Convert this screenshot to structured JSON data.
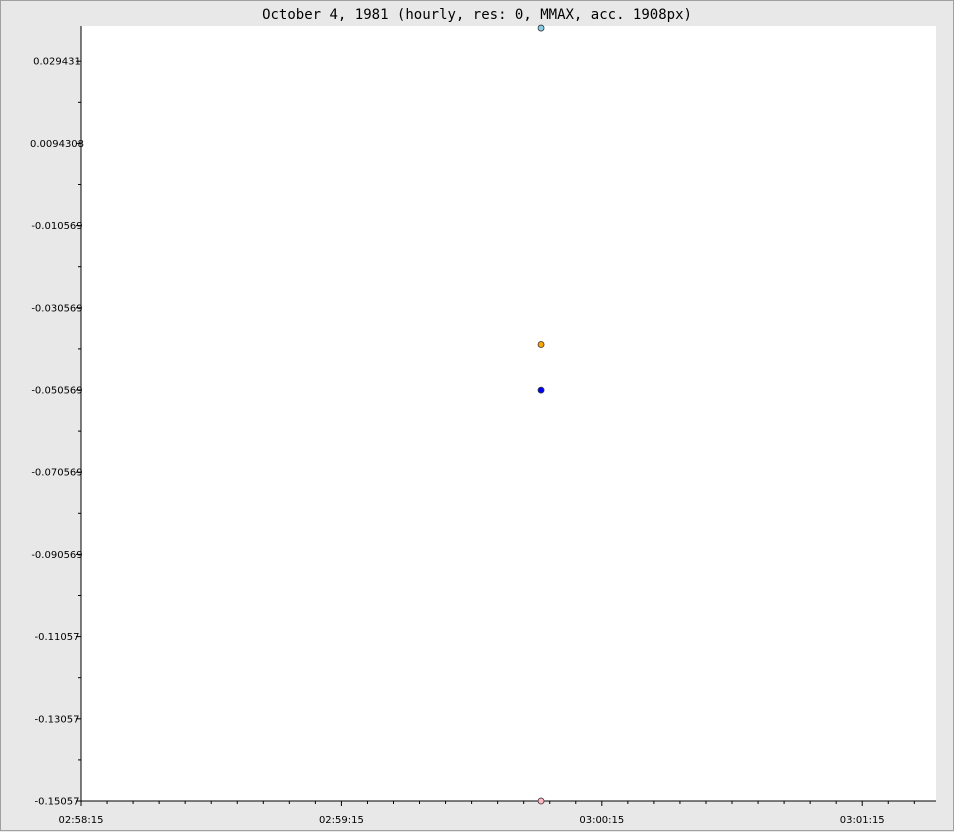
{
  "chart_data": {
    "type": "scatter",
    "title": "October 4, 1981 (hourly, res: 0, MMAX, acc. 1908px)",
    "xlabel": "",
    "ylabel": "",
    "x_tick_labels": [
      "02:58:15",
      "02:59:15",
      "03:00:15",
      "03:01:15"
    ],
    "x_tick_seconds": [
      0,
      60,
      120,
      180
    ],
    "xlim_seconds": [
      0,
      197
    ],
    "y_tick_labels": [
      "0.029431",
      "0.0094308",
      "-0.010569",
      "-0.030569",
      "-0.050569",
      "-0.070569",
      "-0.090569",
      "-0.11057",
      "-0.13057",
      "-0.15057"
    ],
    "y_ticks": [
      0.029431,
      0.0094308,
      -0.010569,
      -0.030569,
      -0.050569,
      -0.070569,
      -0.090569,
      -0.11057,
      -0.13057,
      -0.15057
    ],
    "ylim": [
      -0.15057,
      0.038
    ],
    "grid": false,
    "points": [
      {
        "x_seconds": 106,
        "y": 0.0375,
        "color": "#87ceeb"
      },
      {
        "x_seconds": 106,
        "y": -0.0395,
        "color": "#ffa500"
      },
      {
        "x_seconds": 106,
        "y": -0.0506,
        "color": "#0000ff"
      },
      {
        "x_seconds": 106,
        "y": -0.15057,
        "color": "#ffb6c1"
      }
    ]
  }
}
